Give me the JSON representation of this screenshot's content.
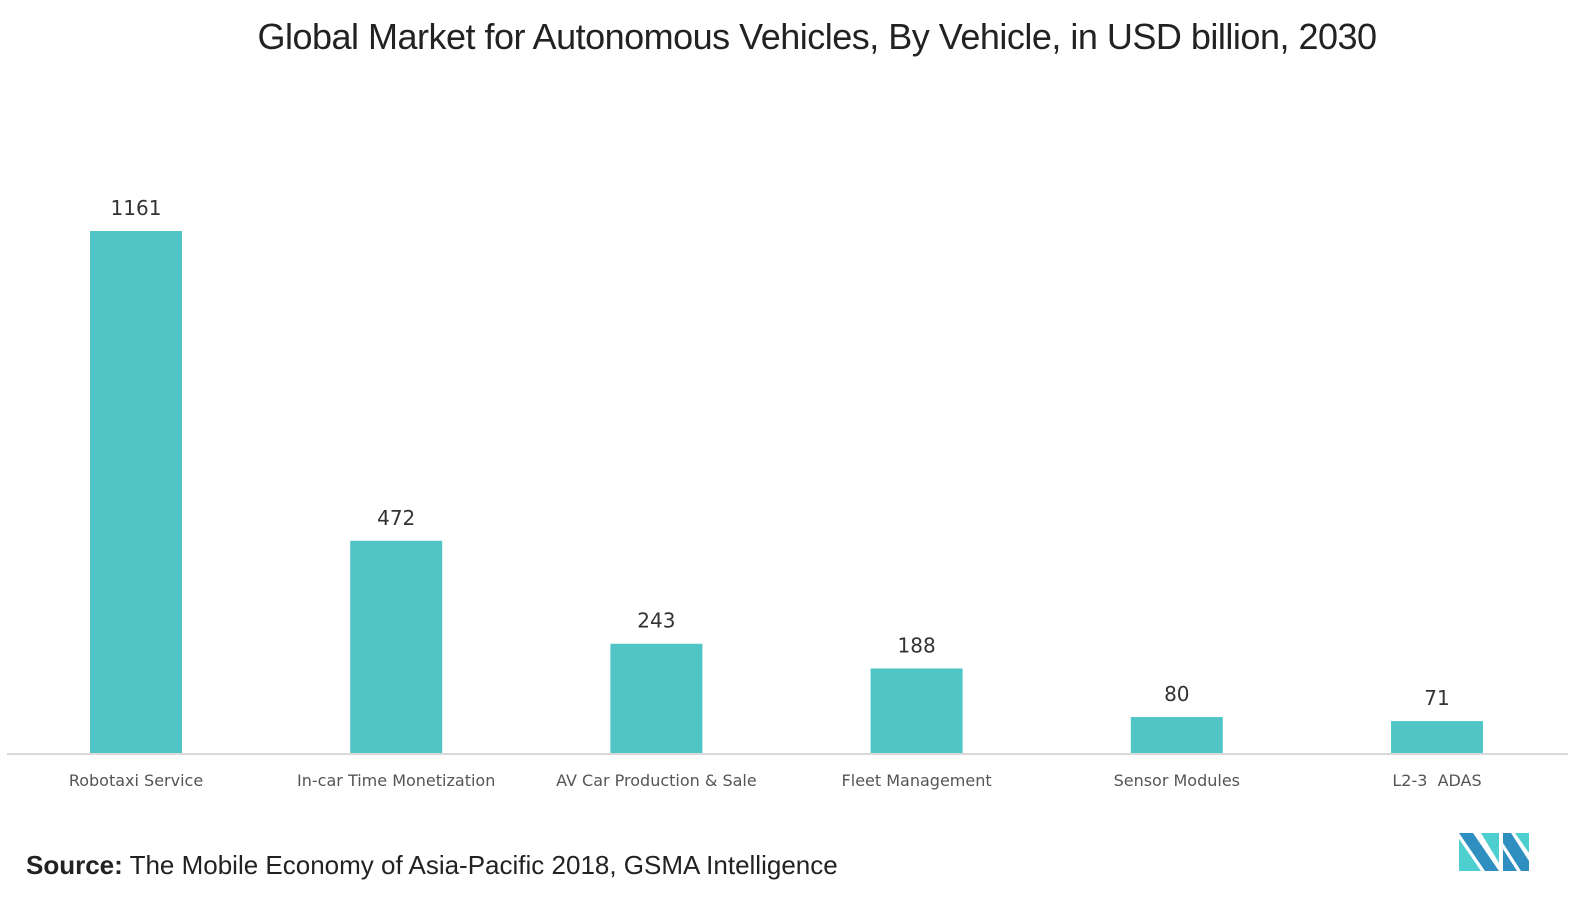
{
  "chart_data": {
    "type": "bar",
    "title": "Global Market for Autonomous Vehicles, By Vehicle, in USD billion, 2030",
    "categories": [
      "Robotaxi Service",
      "In-car Time Monetization",
      "AV Car Production & Sale",
      "Fleet Management",
      "Sensor Modules",
      "L2-3  ADAS"
    ],
    "values": [
      1161,
      472,
      243,
      188,
      80,
      71
    ],
    "xlabel": "",
    "ylabel": "",
    "ylim": [
      0,
      1161
    ],
    "grid": false,
    "bar_color": "#51c4c6"
  },
  "source": {
    "label": "Source:",
    "text": " The Mobile Economy of Asia-Pacific 2018, GSMA Intelligence"
  },
  "logo": {
    "colors": [
      "#2e8fc0",
      "#4ecfcf"
    ]
  }
}
